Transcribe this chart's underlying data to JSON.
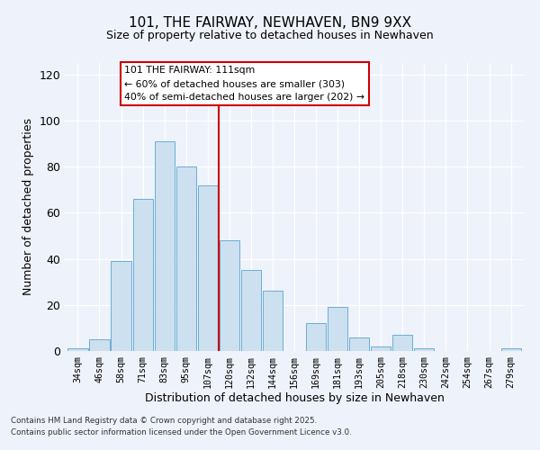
{
  "title": "101, THE FAIRWAY, NEWHAVEN, BN9 9XX",
  "subtitle": "Size of property relative to detached houses in Newhaven",
  "xlabel": "Distribution of detached houses by size in Newhaven",
  "ylabel": "Number of detached properties",
  "bin_labels": [
    "34sqm",
    "46sqm",
    "58sqm",
    "71sqm",
    "83sqm",
    "95sqm",
    "107sqm",
    "120sqm",
    "132sqm",
    "144sqm",
    "156sqm",
    "169sqm",
    "181sqm",
    "193sqm",
    "205sqm",
    "218sqm",
    "230sqm",
    "242sqm",
    "254sqm",
    "267sqm",
    "279sqm"
  ],
  "bar_heights": [
    1,
    5,
    39,
    66,
    91,
    80,
    72,
    48,
    35,
    26,
    0,
    12,
    19,
    6,
    2,
    7,
    1,
    0,
    0,
    0,
    1
  ],
  "bar_color": "#cde0f0",
  "bar_edge_color": "#6aaed6",
  "vline_color": "#cc0000",
  "annotation_title": "101 THE FAIRWAY: 111sqm",
  "annotation_line1": "← 60% of detached houses are smaller (303)",
  "annotation_line2": "40% of semi-detached houses are larger (202) →",
  "ylim": [
    0,
    125
  ],
  "yticks": [
    0,
    20,
    40,
    60,
    80,
    100,
    120
  ],
  "footer1": "Contains HM Land Registry data © Crown copyright and database right 2025.",
  "footer2": "Contains public sector information licensed under the Open Government Licence v3.0.",
  "bg_color": "#eef2fa",
  "plot_bg_color": "#eef2fa",
  "title_fontsize": 11,
  "subtitle_fontsize": 9
}
